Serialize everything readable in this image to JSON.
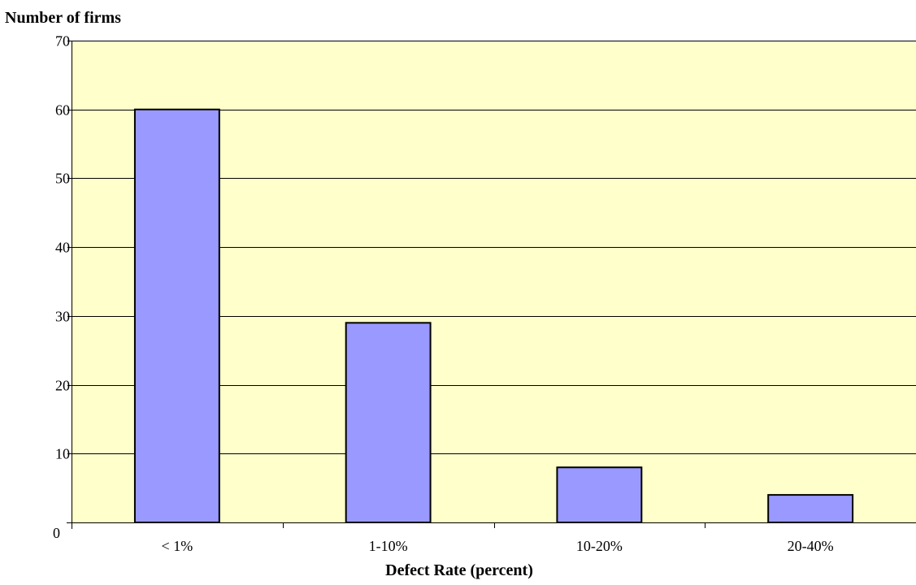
{
  "chart_data": {
    "type": "bar",
    "categories": [
      "< 1%",
      "1-10%",
      "10-20%",
      "20-40%"
    ],
    "values": [
      60,
      29,
      8,
      4
    ],
    "ylabel": "Number of firms",
    "xlabel": "Defect Rate (percent)",
    "ylim": [
      0,
      70
    ],
    "yticks": [
      0,
      10,
      20,
      30,
      40,
      50,
      60,
      70
    ],
    "grid": true,
    "legend": "none",
    "colors": {
      "bar_fill": "#9999ff",
      "bar_stroke": "#000000",
      "plot_background": "#ffffcc",
      "gridline": "#000000"
    }
  }
}
